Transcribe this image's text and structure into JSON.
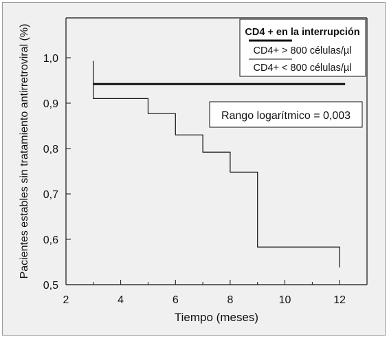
{
  "chart_data": {
    "type": "line",
    "xlabel": "Tiempo (meses)",
    "ylabel": "Pacientes estables sin tratamiento antirretroviral (%)",
    "xlim": [
      2,
      13
    ],
    "ylim": [
      0.5,
      1.0
    ],
    "xticks": [
      "2",
      "4",
      "6",
      "8",
      "10",
      "12"
    ],
    "yticks": [
      "0,5",
      "0,6",
      "0,7",
      "0,8",
      "0,9",
      "1,0"
    ],
    "grid": false,
    "legend": {
      "position": "top-right",
      "title": "CD4 + en la interrupción",
      "entries": [
        "CD4+ > 800 células/µl",
        "CD4+ < 800 células/µl"
      ]
    },
    "annotation": "Rango logarítmico = 0,003",
    "series": [
      {
        "name": "CD4+ > 800 células/µl",
        "style": "thick",
        "x": [
          3,
          12.2
        ],
        "y": [
          0.942,
          0.942
        ]
      },
      {
        "name": "CD4+ < 800 células/µl",
        "style": "thin",
        "x": [
          3,
          5,
          6,
          7,
          8,
          9,
          12
        ],
        "y": [
          0.91,
          0.877,
          0.83,
          0.792,
          0.748,
          0.583,
          0.583
        ],
        "end_x": 12,
        "end_y": 0.538,
        "start_y": 0.993
      }
    ]
  }
}
